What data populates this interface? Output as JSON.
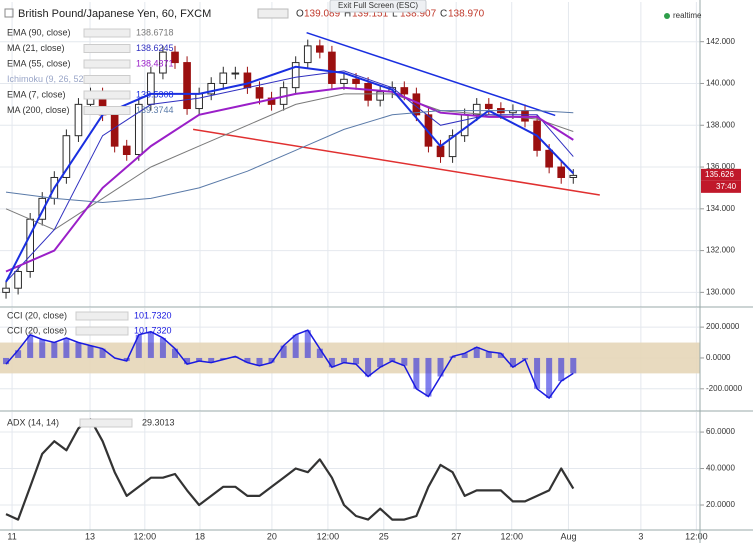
{
  "header": {
    "title": "British Pound/Japanese Yen, 60, FXCM",
    "ohlc": [
      {
        "label": "O",
        "value": "139.089"
      },
      {
        "label": "H",
        "value": "139.151"
      },
      {
        "label": "L",
        "value": "138.907"
      },
      {
        "label": "C",
        "value": "138.970"
      }
    ],
    "exit_button": "Exit Full Screen (ESC)",
    "status": "realtime",
    "price_tag": "135.626",
    "countdown": "37:40"
  },
  "chart_data": [
    {
      "type": "candlestick",
      "x": [
        0,
        1,
        2,
        3,
        4,
        5,
        6,
        7,
        8,
        9,
        10,
        11,
        12,
        13,
        14,
        15,
        16,
        17,
        18,
        19,
        20,
        21,
        22,
        23,
        24,
        25,
        26,
        27,
        28,
        29,
        30,
        31,
        32,
        33,
        34,
        35,
        36,
        37,
        38,
        39,
        40,
        41,
        42,
        43,
        44,
        45,
        46,
        47
      ],
      "open": [
        130.0,
        130.2,
        131.0,
        133.5,
        134.5,
        135.5,
        137.5,
        139.0,
        139.5,
        138.5,
        137.0,
        136.6,
        139.0,
        140.5,
        141.5,
        141.0,
        138.8,
        139.5,
        140.0,
        140.5,
        140.5,
        139.8,
        139.3,
        139.0,
        139.8,
        141.0,
        141.8,
        141.5,
        140.0,
        140.2,
        140.0,
        139.2,
        139.6,
        139.8,
        139.5,
        138.5,
        137.0,
        136.5,
        137.5,
        138.5,
        139.0,
        138.8,
        138.6,
        138.7,
        138.2,
        136.8,
        136.0,
        135.5
      ],
      "high": [
        130.5,
        131.3,
        133.8,
        134.8,
        135.8,
        137.8,
        139.3,
        139.8,
        139.8,
        138.8,
        137.3,
        139.3,
        140.8,
        141.8,
        141.8,
        141.3,
        139.8,
        140.3,
        140.8,
        140.8,
        140.8,
        140.1,
        139.6,
        140.1,
        141.3,
        142.1,
        142.1,
        141.8,
        140.5,
        140.5,
        140.3,
        139.9,
        140.1,
        140.1,
        139.8,
        138.8,
        137.3,
        137.8,
        138.8,
        139.3,
        139.3,
        139.1,
        139.0,
        139.0,
        138.5,
        137.1,
        136.3,
        135.9
      ],
      "low": [
        129.7,
        129.9,
        130.7,
        133.2,
        134.2,
        135.2,
        137.2,
        138.7,
        138.2,
        136.7,
        136.3,
        136.3,
        138.7,
        140.2,
        140.7,
        138.5,
        138.5,
        139.2,
        139.7,
        140.2,
        139.5,
        139.0,
        138.7,
        138.7,
        139.5,
        140.7,
        141.2,
        139.7,
        139.7,
        139.7,
        138.9,
        138.9,
        139.3,
        139.2,
        138.2,
        136.7,
        136.2,
        136.2,
        137.2,
        138.2,
        138.5,
        138.3,
        138.3,
        137.9,
        136.5,
        135.7,
        135.2,
        135.2
      ],
      "close": [
        130.2,
        131.0,
        133.5,
        134.5,
        135.5,
        137.5,
        139.0,
        139.5,
        138.5,
        137.0,
        136.6,
        139.0,
        140.5,
        141.5,
        141.0,
        138.8,
        139.5,
        140.0,
        140.5,
        140.5,
        139.8,
        139.3,
        139.0,
        139.8,
        141.0,
        141.8,
        141.5,
        140.0,
        140.2,
        140.0,
        139.2,
        139.6,
        139.8,
        139.5,
        138.5,
        137.0,
        136.5,
        137.5,
        138.5,
        139.0,
        138.8,
        138.6,
        138.7,
        138.2,
        136.8,
        136.0,
        135.5,
        135.6
      ],
      "up_color": "#2b2b2b",
      "down_color": "#9b1010",
      "series": [
        {
          "name": "EMA (90, close)",
          "color": "#7a7a7a",
          "width": 1,
          "last_label": "138.6718",
          "x": [
            0,
            4,
            8,
            12,
            16,
            20,
            24,
            28,
            32,
            36,
            40,
            44,
            47
          ],
          "values": [
            134.0,
            133.0,
            134.5,
            136.0,
            137.0,
            138.0,
            139.0,
            139.5,
            139.5,
            138.7,
            138.5,
            138.3,
            137.7
          ]
        },
        {
          "name": "MA (21, close)",
          "color": "#3030c0",
          "width": 1,
          "last_label": "138.6245",
          "x": [
            0,
            4,
            8,
            12,
            16,
            20,
            24,
            28,
            32,
            36,
            40,
            44,
            47
          ],
          "values": [
            130.5,
            133.0,
            137.5,
            139.0,
            139.3,
            139.8,
            140.3,
            140.6,
            139.8,
            138.0,
            138.5,
            138.5,
            136.5
          ]
        },
        {
          "name": "EMA (55, close)",
          "color": "#9a1fc8",
          "width": 2,
          "last_label": "138.4371",
          "x": [
            0,
            4,
            8,
            12,
            16,
            20,
            24,
            28,
            32,
            36,
            40,
            44,
            47
          ],
          "values": [
            131.0,
            132.0,
            135.0,
            137.0,
            138.5,
            139.0,
            139.5,
            139.8,
            139.6,
            138.6,
            138.4,
            138.4,
            137.3
          ]
        },
        {
          "name": "Ichimoku (9, 26, 52, 26)",
          "color": "#9aa6c8",
          "width": 0,
          "last_label": null,
          "x": [],
          "values": []
        },
        {
          "name": "EMA (7, close)",
          "color": "#1a2fe0",
          "width": 2,
          "last_label": "138.5308",
          "x": [
            0,
            4,
            8,
            12,
            16,
            20,
            24,
            28,
            32,
            36,
            40,
            44,
            47
          ],
          "values": [
            130.5,
            135.0,
            138.5,
            139.5,
            139.5,
            140.0,
            140.8,
            140.5,
            139.7,
            137.0,
            138.7,
            137.5,
            135.7
          ]
        },
        {
          "name": "MA (200, close)",
          "color": "#5a7aa8",
          "width": 1,
          "last_label": "139.3744",
          "x": [
            0,
            4,
            8,
            12,
            16,
            20,
            24,
            28,
            32,
            36,
            40,
            44,
            47
          ],
          "values": [
            134.8,
            134.5,
            134.3,
            134.5,
            135.0,
            135.8,
            136.8,
            137.8,
            138.5,
            138.7,
            138.7,
            138.7,
            138.6
          ]
        }
      ],
      "trendlines": [
        {
          "color": "#1a2fe0",
          "x": [
            24.9,
            45.5
          ],
          "values": [
            142.43,
            138.47
          ]
        },
        {
          "color": "#e03030",
          "x": [
            15.5,
            49.2
          ],
          "values": [
            137.8,
            134.66
          ]
        }
      ],
      "xlim": [
        -0.5,
        57.5
      ],
      "ylim": [
        129.3,
        143.9
      ],
      "yticks": [
        {
          "value": 130,
          "label": "130.000"
        },
        {
          "value": 132,
          "label": "132.000"
        },
        {
          "value": 134,
          "label": "134.000"
        },
        {
          "value": 136,
          "label": "136.000"
        },
        {
          "value": 138,
          "label": "138.000"
        },
        {
          "value": 140,
          "label": "140.000"
        },
        {
          "value": 142,
          "label": "142.000"
        }
      ],
      "last_price": 135.626
    },
    {
      "type": "cci",
      "x": [
        0,
        1,
        2,
        3,
        4,
        5,
        6,
        7,
        8,
        9,
        10,
        11,
        12,
        13,
        14,
        15,
        16,
        17,
        18,
        19,
        20,
        21,
        22,
        23,
        24,
        25,
        26,
        27,
        28,
        29,
        30,
        31,
        32,
        33,
        34,
        35,
        36,
        37,
        38,
        39,
        40,
        41,
        42,
        43,
        44,
        45,
        46,
        47
      ],
      "series": [
        {
          "name": "CCI (20, close)",
          "color": "#1a1ae0",
          "last_label": "101.7320",
          "values": [
            -40,
            50,
            150,
            120,
            100,
            130,
            100,
            80,
            60,
            0,
            -20,
            150,
            170,
            130,
            60,
            -40,
            -20,
            -30,
            -10,
            10,
            -30,
            -50,
            -30,
            80,
            150,
            180,
            60,
            -60,
            -30,
            -40,
            -120,
            -60,
            -20,
            -50,
            -200,
            -250,
            -120,
            10,
            30,
            70,
            40,
            30,
            -60,
            -10,
            -200,
            -260,
            -150,
            -100
          ]
        }
      ],
      "legend_repeat": {
        "name": "CCI (20, close)",
        "last_label": "101.7320"
      },
      "band": [
        100,
        -100
      ],
      "band_color": "#e6d6b8",
      "xlim": [
        -0.5,
        57.5
      ],
      "ylim": [
        -344,
        324
      ],
      "yticks": [
        {
          "value": -200,
          "label": "-200.0000"
        },
        {
          "value": 0,
          "label": "0.0000"
        },
        {
          "value": 200,
          "label": "200.0000"
        }
      ]
    },
    {
      "type": "line",
      "x": [
        0,
        1,
        2,
        3,
        4,
        5,
        6,
        7,
        8,
        9,
        10,
        11,
        12,
        13,
        14,
        15,
        16,
        17,
        18,
        19,
        20,
        21,
        22,
        23,
        24,
        25,
        26,
        27,
        28,
        29,
        30,
        31,
        32,
        33,
        34,
        35,
        36,
        37,
        38,
        39,
        40,
        41,
        42,
        43,
        44,
        45,
        46,
        47
      ],
      "series": [
        {
          "name": "ADX (14, 14)",
          "color": "#333333",
          "last_label": "29.3013",
          "values": [
            15,
            12,
            30,
            48,
            55,
            50,
            62,
            67,
            55,
            38,
            25,
            30,
            35,
            35,
            37,
            28,
            20,
            25,
            30,
            30,
            25,
            25,
            30,
            35,
            40,
            38,
            45,
            35,
            20,
            14,
            12,
            18,
            12,
            12,
            14,
            30,
            42,
            38,
            25,
            28,
            28,
            28,
            22,
            22,
            25,
            28,
            40,
            29
          ]
        }
      ],
      "xlim": [
        -0.5,
        57.5
      ],
      "ylim": [
        6.3,
        71
      ],
      "yticks": [
        {
          "value": 20,
          "label": "20.0000"
        },
        {
          "value": 40,
          "label": "40.0000"
        },
        {
          "value": 60,
          "label": "60.0000"
        }
      ],
      "xticks": [
        {
          "value": 0.5,
          "label": "11"
        },
        {
          "value": 6.96,
          "label": "13"
        },
        {
          "value": 11.5,
          "label": "12:00"
        },
        {
          "value": 16.07,
          "label": "18"
        },
        {
          "value": 22.03,
          "label": "20"
        },
        {
          "value": 26.67,
          "label": "12:00"
        },
        {
          "value": 31.3,
          "label": "25"
        },
        {
          "value": 37.3,
          "label": "27"
        },
        {
          "value": 41.9,
          "label": "12:00"
        },
        {
          "value": 46.6,
          "label": "Aug"
        },
        {
          "value": 52.6,
          "label": "3"
        },
        {
          "value": 57.2,
          "label": "12:00"
        }
      ]
    }
  ]
}
